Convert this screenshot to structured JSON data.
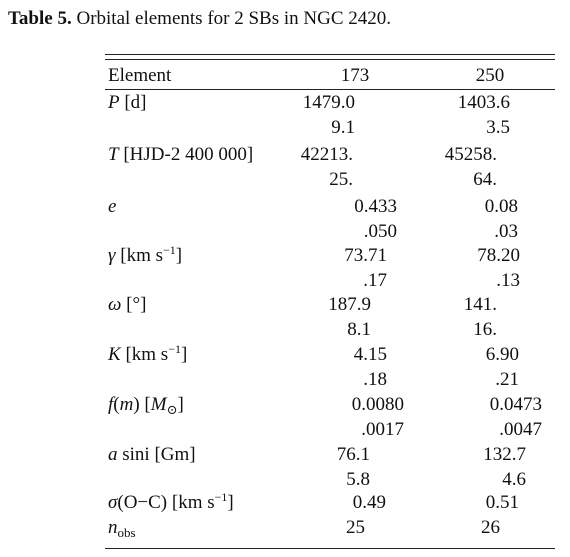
{
  "header": {
    "label": "Table 5.",
    "title": " Orbital elements for 2 SBs in NGC 2420."
  },
  "table": {
    "columns": [
      "Element",
      "173",
      "250"
    ],
    "rows": [
      {
        "label": [
          "P",
          " [d]"
        ],
        "values": [
          "1479.0",
          "1403.6"
        ],
        "errors": [
          "9.1",
          "3.5"
        ]
      },
      {
        "label": [
          "T",
          " [HJD-2 400 000]"
        ],
        "values": [
          "42213.",
          "45258."
        ],
        "errors": [
          "25.",
          "64."
        ]
      },
      {
        "label": [
          "e"
        ],
        "values": [
          "0.433",
          "0.08"
        ],
        "errors": [
          ".050",
          ".03"
        ]
      },
      {
        "label": [
          "γ",
          " [km s",
          "−1",
          "]"
        ],
        "values": [
          "73.71",
          "78.20"
        ],
        "errors": [
          ".17",
          ".13"
        ]
      },
      {
        "label": [
          "ω",
          " [°]"
        ],
        "values": [
          "187.9",
          "141."
        ],
        "errors": [
          "8.1",
          "16."
        ]
      },
      {
        "label": [
          "K",
          " [km s",
          "−1",
          "]"
        ],
        "values": [
          "4.15",
          "6.90"
        ],
        "errors": [
          ".18",
          ".21"
        ]
      },
      {
        "label": [
          "f",
          "(",
          "m",
          ") [",
          "M",
          "⊙",
          "]"
        ],
        "values": [
          "0.0080",
          "0.0473"
        ],
        "errors": [
          ".0017",
          ".0047"
        ]
      },
      {
        "label": [
          "a",
          " sini [Gm]"
        ],
        "values": [
          "76.1",
          "132.7"
        ],
        "errors": [
          "5.8",
          "4.6"
        ]
      },
      {
        "label": [
          "σ",
          "(O−C) [km s",
          "−1",
          "]"
        ],
        "values": [
          "0.49",
          "0.51"
        ]
      },
      {
        "label": [
          "n",
          "obs"
        ],
        "values": [
          "25",
          "26"
        ]
      }
    ]
  }
}
